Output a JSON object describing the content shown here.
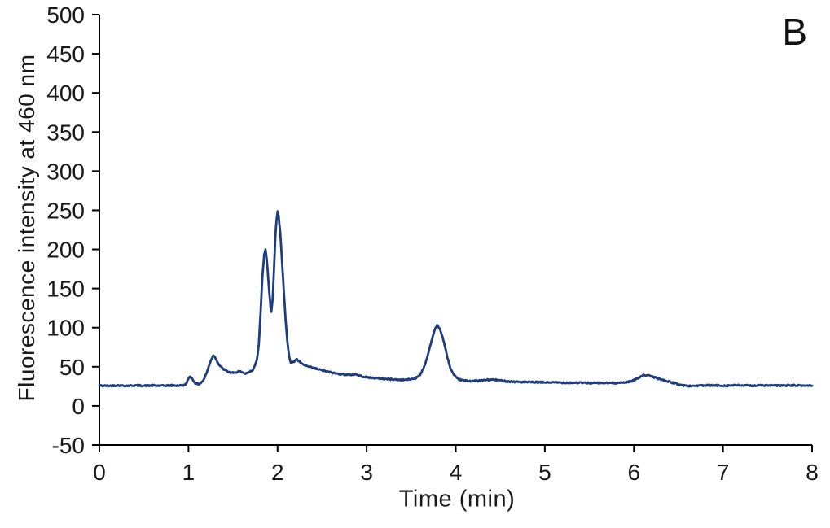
{
  "figure": {
    "panel_label": "B",
    "background_color": "#ffffff"
  },
  "chart_data": {
    "type": "line",
    "title": "",
    "xlabel": "Time (min)",
    "ylabel": "Fluorescence intensity at 460 nm",
    "xlim": [
      0,
      8
    ],
    "ylim": [
      -50,
      500
    ],
    "x_ticks": [
      0,
      1,
      2,
      3,
      4,
      5,
      6,
      7,
      8
    ],
    "y_ticks": [
      500,
      450,
      400,
      350,
      300,
      250,
      200,
      150,
      100,
      50,
      0,
      -50
    ],
    "grid": false,
    "legend": null,
    "line_color": "#1f3d7d",
    "axis_color": "#000000",
    "tick_label_color": "#1a1a1a",
    "noise_amplitude": 0.9,
    "baseline_intensity": 26,
    "peaks": [
      {
        "time": 1.02,
        "intensity": 38
      },
      {
        "time": 1.28,
        "intensity": 65
      },
      {
        "time": 1.86,
        "intensity": 200
      },
      {
        "time": 2.0,
        "intensity": 248
      },
      {
        "time": 3.79,
        "intensity": 103
      },
      {
        "time": 6.1,
        "intensity": 40
      }
    ],
    "series": [
      {
        "name": "fluorescence-trace",
        "points": [
          [
            0,
            26
          ],
          [
            0.1,
            25.6
          ],
          [
            0.2,
            26.2
          ],
          [
            0.3,
            25.7
          ],
          [
            0.4,
            26.1
          ],
          [
            0.5,
            25.8
          ],
          [
            0.6,
            26.0
          ],
          [
            0.7,
            25.7
          ],
          [
            0.8,
            26.1
          ],
          [
            0.9,
            26.0
          ],
          [
            0.95,
            26.5
          ],
          [
            0.98,
            29
          ],
          [
            1.0,
            35
          ],
          [
            1.02,
            38
          ],
          [
            1.045,
            34
          ],
          [
            1.07,
            30
          ],
          [
            1.1,
            27.5
          ],
          [
            1.13,
            28.5
          ],
          [
            1.17,
            33
          ],
          [
            1.21,
            44
          ],
          [
            1.25,
            58
          ],
          [
            1.28,
            65
          ],
          [
            1.31,
            60
          ],
          [
            1.34,
            53
          ],
          [
            1.38,
            48
          ],
          [
            1.42,
            45
          ],
          [
            1.47,
            42.5
          ],
          [
            1.52,
            42
          ],
          [
            1.56,
            44.5
          ],
          [
            1.6,
            42.5
          ],
          [
            1.64,
            41
          ],
          [
            1.68,
            43
          ],
          [
            1.72,
            46
          ],
          [
            1.75,
            52
          ],
          [
            1.77,
            60
          ],
          [
            1.79,
            80
          ],
          [
            1.81,
            120
          ],
          [
            1.83,
            165
          ],
          [
            1.85,
            193
          ],
          [
            1.865,
            200
          ],
          [
            1.88,
            186
          ],
          [
            1.9,
            156
          ],
          [
            1.92,
            128
          ],
          [
            1.93,
            120
          ],
          [
            1.945,
            136
          ],
          [
            1.96,
            175
          ],
          [
            1.975,
            215
          ],
          [
            1.99,
            240
          ],
          [
            2.0,
            248
          ],
          [
            2.012,
            243
          ],
          [
            2.03,
            222
          ],
          [
            2.05,
            186
          ],
          [
            2.07,
            148
          ],
          [
            2.09,
            110
          ],
          [
            2.11,
            82
          ],
          [
            2.13,
            64
          ],
          [
            2.15,
            55
          ],
          [
            2.18,
            56
          ],
          [
            2.21,
            60
          ],
          [
            2.24,
            57
          ],
          [
            2.28,
            53
          ],
          [
            2.35,
            50
          ],
          [
            2.45,
            47
          ],
          [
            2.55,
            44
          ],
          [
            2.65,
            41.5
          ],
          [
            2.75,
            40
          ],
          [
            2.82,
            39.5
          ],
          [
            2.87,
            40.5
          ],
          [
            2.92,
            38.5
          ],
          [
            3.0,
            36.5
          ],
          [
            3.1,
            35.5
          ],
          [
            3.2,
            34.5
          ],
          [
            3.3,
            33.8
          ],
          [
            3.4,
            33.2
          ],
          [
            3.5,
            34
          ],
          [
            3.55,
            35.5
          ],
          [
            3.6,
            40
          ],
          [
            3.64,
            48
          ],
          [
            3.68,
            62
          ],
          [
            3.72,
            80
          ],
          [
            3.76,
            96
          ],
          [
            3.79,
            103
          ],
          [
            3.82,
            99
          ],
          [
            3.86,
            85
          ],
          [
            3.9,
            65
          ],
          [
            3.94,
            48
          ],
          [
            3.98,
            39
          ],
          [
            4.02,
            34.5
          ],
          [
            4.08,
            32.5
          ],
          [
            4.15,
            31.8
          ],
          [
            4.25,
            32
          ],
          [
            4.35,
            33.2
          ],
          [
            4.42,
            33.5
          ],
          [
            4.5,
            32.5
          ],
          [
            4.6,
            31.2
          ],
          [
            4.75,
            30.5
          ],
          [
            4.9,
            30.2
          ],
          [
            5.05,
            30
          ],
          [
            5.2,
            29.8
          ],
          [
            5.35,
            29.6
          ],
          [
            5.5,
            29.3
          ],
          [
            5.65,
            29.2
          ],
          [
            5.8,
            29.3
          ],
          [
            5.9,
            30
          ],
          [
            5.97,
            31.5
          ],
          [
            6.03,
            34.5
          ],
          [
            6.08,
            38
          ],
          [
            6.12,
            39.5
          ],
          [
            6.18,
            38.2
          ],
          [
            6.25,
            35.8
          ],
          [
            6.32,
            33.2
          ],
          [
            6.4,
            30.8
          ],
          [
            6.48,
            28.2
          ],
          [
            6.55,
            26.2
          ],
          [
            6.62,
            25.4
          ],
          [
            6.7,
            25.8
          ],
          [
            6.85,
            26.2
          ],
          [
            7.0,
            25.9
          ],
          [
            7.15,
            26.3
          ],
          [
            7.3,
            25.9
          ],
          [
            7.45,
            26.2
          ],
          [
            7.6,
            25.9
          ],
          [
            7.75,
            26.2
          ],
          [
            7.9,
            25.9
          ],
          [
            8.0,
            26
          ]
        ]
      }
    ]
  }
}
